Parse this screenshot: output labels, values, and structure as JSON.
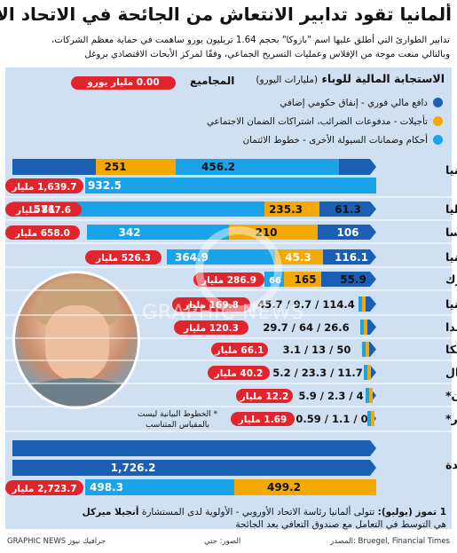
{
  "title": "ألمانيا تقود تدابير الانتعاش من الجائحة في الاتحاد الأوروبي",
  "subtitle_lines": [
    "تدابير الطوارئ التي أطلق عليها اسم \"بازوكا\" بحجم 1.64 تريليون يورو ساهمت في حماية معظم الشركات،",
    "وبالتالي منعت موجة من الإفلاس وعمليات التسريح الجماعي، وفقًا لمركز الأبحاث الاقتصادي بروغل"
  ],
  "legend_title": "الاستجابة المالية للوباء",
  "legend_unit": "(مليارات اليورو)",
  "total_label": "المجاميع",
  "total_pill": "0.00 مليار يورو",
  "legend": [
    {
      "label": "دافع مالي فوري - إنفاق حكومي إضافي",
      "color": "#1a5fb4"
    },
    {
      "label": "تأجيلات - مدفوعات الضرائب، اشتراكات الضمان الاجتماعي",
      "color": "#f5a800"
    },
    {
      "label": "أحكام وضمانات السيولة الأخرى - خطوط الائتمان",
      "color": "#1aa3e8"
    }
  ],
  "note": "* الخطوط البيانية ليست بالمقياس المتناسب",
  "footer_date": "1 تموز (يوليو):",
  "footer_body": "تتولى ألمانيا رئاسة الاتحاد الأوروبي - الأولوية لدى المستشارة",
  "footer_name": "أنجيلا ميركل",
  "footer_line2": "هي التوسط في التعامل مع صندوق التعافي بعد الجائحة",
  "source": "المصدر: Bruegel, Financial Times",
  "photo_credit": "الصور: جتي",
  "credit": "GRAPHIC NEWS جرافيك نيوز",
  "watermark": "GRAPHIC NEWS",
  "chart_data": {
    "type": "bar",
    "orientation": "horizontal-stacked",
    "unit": "مليار",
    "series": [
      {
        "name": "دافع مالي فوري - إنفاق حكومي إضافي",
        "color": "#1a5fb4"
      },
      {
        "name": "تأجيلات - مدفوعات الضرائب، اشتراكات الضمان الاجتماعي",
        "color": "#f5a800"
      },
      {
        "name": "أحكام وضمانات السيولة الأخرى - خطوط الائتمان",
        "color": "#1aa3e8"
      }
    ],
    "countries": [
      {
        "name": "ألمانيا",
        "immediate": 456.2,
        "deferral": 251,
        "liquidity": 932.5,
        "total": "1,639.7",
        "labels": [
          "456.2",
          "251",
          "932.5"
        ],
        "two_rows": true
      },
      {
        "name": "إيطاليا",
        "immediate": 61.3,
        "deferral": 235.3,
        "liquidity": 571,
        "total": "867.6",
        "labels": [
          "61.3",
          "235.3",
          "571"
        ],
        "two_rows": false
      },
      {
        "name": "فرنسا",
        "immediate": 106,
        "deferral": 210,
        "liquidity": 342,
        "total": "658.0",
        "labels": [
          "106",
          "210",
          "342"
        ],
        "two_rows": false
      },
      {
        "name": "بريطانيا",
        "immediate": 116.1,
        "deferral": 45.3,
        "liquidity": 364.9,
        "total": "526.3",
        "labels": [
          "116.1",
          "45.3",
          "364.9"
        ],
        "two_rows": false
      },
      {
        "name": "الدنمارك",
        "immediate": 55.9,
        "deferral": 165,
        "liquidity": 66,
        "total": "286.9",
        "labels": [
          "55.9",
          "165",
          "66"
        ],
        "two_rows": false
      },
      {
        "name": "إسبانيا",
        "immediate": 45.7,
        "deferral": 9.7,
        "liquidity": 114.4,
        "total": "169.8",
        "labels": [
          "45.7 / 9.7 / 114.4"
        ],
        "two_rows": false
      },
      {
        "name": "هولندا",
        "immediate": 29.7,
        "deferral": 64,
        "liquidity": 26.6,
        "total": "120.3",
        "labels": [
          "29.7 / 64 / 26.6"
        ],
        "two_rows": false
      },
      {
        "name": "بلجيكا",
        "immediate": 3.1,
        "deferral": 13,
        "liquidity": 50,
        "total": "66.1",
        "labels": [
          "3.1 / 13 / 50"
        ],
        "two_rows": false
      },
      {
        "name": "البرتغال",
        "immediate": 5.2,
        "deferral": 23.3,
        "liquidity": 11.7,
        "total": "40.2",
        "labels": [
          "5.2 / 23.3 / 11.7"
        ],
        "two_rows": false
      },
      {
        "name": "اليونان*",
        "immediate": 5.9,
        "deferral": 2.3,
        "liquidity": 4,
        "total": "12.2",
        "labels": [
          "5.9 / 2.3 / 4"
        ],
        "two_rows": false
      },
      {
        "name": "المجر*",
        "immediate": 0.59,
        "deferral": 1.1,
        "liquidity": 0,
        "total": "1.69",
        "labels": [
          "0.59 / 1.1 / 0"
        ],
        "two_rows": false
      },
      {
        "name": "الولايات المتحدة",
        "immediate": 1726.2,
        "deferral": 499.2,
        "liquidity": 498.3,
        "total": "2,723.7",
        "labels": [
          "1,726.2",
          "499.2",
          "498.3"
        ],
        "two_rows": true
      }
    ]
  }
}
